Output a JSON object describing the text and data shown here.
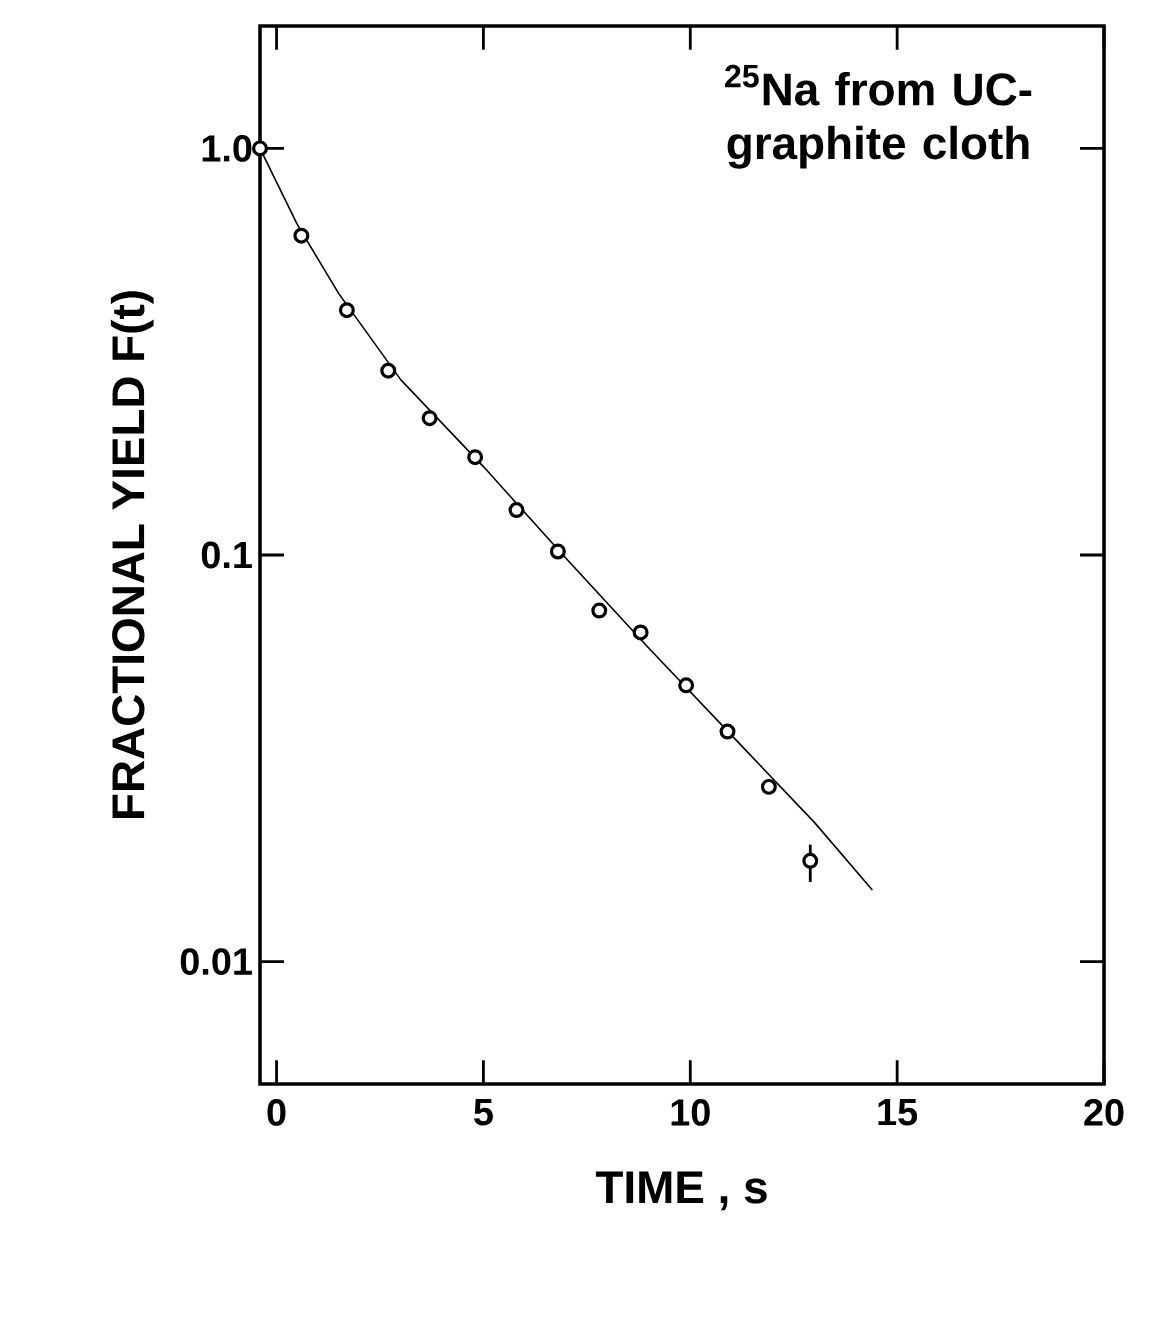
{
  "chart_data": {
    "type": "scatter",
    "title": "$^{25}$Na from UC-graphite cloth",
    "xlabel": "TIME , s",
    "ylabel": "FRACTIONAL  YIELD  F(t)",
    "log": "y",
    "xlim": [
      -0.4,
      20
    ],
    "ylim": [
      0.005,
      2
    ],
    "xticks": [
      0,
      5,
      10,
      15,
      20
    ],
    "yticks": [
      {
        "value": 0.01,
        "label": "0.01"
      },
      {
        "value": 0.1,
        "label": "0.1"
      },
      {
        "value": 1,
        "label": "1.0"
      }
    ],
    "grid": false,
    "series": [
      {
        "marker": "circle",
        "color": "#000000",
        "x": [
          -0.4,
          0.6,
          1.7,
          2.7,
          3.7,
          4.8,
          5.8,
          6.8,
          7.8,
          8.8,
          9.9,
          10.9,
          11.9,
          12.9
        ],
        "values": [
          1.0,
          0.61,
          0.4,
          0.284,
          0.217,
          0.174,
          0.129,
          0.102,
          0.073,
          0.0645,
          0.0478,
          0.0368,
          0.0269,
          0.0177
        ],
        "errors": [
          null,
          null,
          null,
          null,
          null,
          null,
          null,
          null,
          null,
          null,
          null,
          null,
          null,
          [
            0.0157,
            0.0194
          ]
        ]
      },
      {
        "type": "line",
        "marker": "none",
        "line_style": "solid",
        "color": "#000000",
        "x": [
          -0.4,
          0.5,
          1.5,
          3,
          5,
          7,
          9,
          11,
          13,
          14.4
        ],
        "values": [
          1.0,
          0.65,
          0.44,
          0.27,
          0.165,
          0.098,
          0.059,
          0.036,
          0.022,
          0.015
        ]
      }
    ]
  }
}
